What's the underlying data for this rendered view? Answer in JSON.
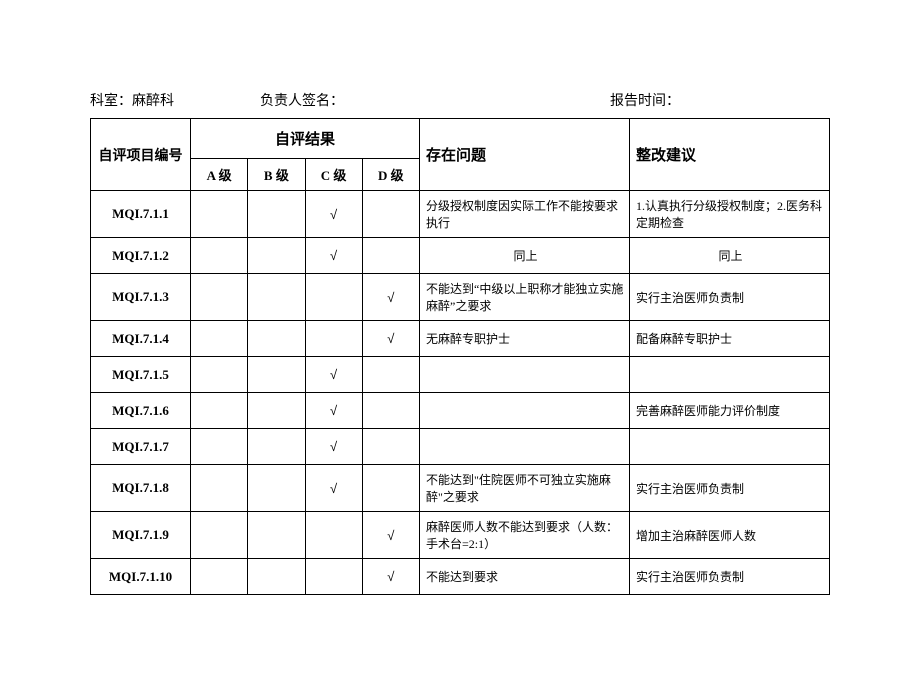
{
  "header": {
    "department_label": "科室：",
    "department_value": "麻醉科",
    "signature_label": "负责人签名：",
    "report_time_label": "报告时间："
  },
  "columns": {
    "id": "自评项目编号",
    "result_group": "自评结果",
    "gradeA": "A 级",
    "gradeB": "B 级",
    "gradeC": "C 级",
    "gradeD": "D 级",
    "issues": "存在问题",
    "suggestions": "整改建议"
  },
  "tick": "√",
  "rows": [
    {
      "id": "MQI.7.1.1",
      "grade": "C",
      "issue": "分级授权制度因实际工作不能按要求执行",
      "suggestion": "1.认真执行分级授权制度；2.医务科定期检查"
    },
    {
      "id": "MQI.7.1.2",
      "grade": "C",
      "issue": "同上",
      "issue_align": "center",
      "suggestion": "同上",
      "suggestion_align": "center"
    },
    {
      "id": "MQI.7.1.3",
      "grade": "D",
      "issue": "不能达到“中级以上职称才能独立实施麻醉”之要求",
      "suggestion": "实行主治医师负责制"
    },
    {
      "id": "MQI.7.1.4",
      "grade": "D",
      "issue": "无麻醉专职护士",
      "suggestion": "配备麻醉专职护士"
    },
    {
      "id": "MQI.7.1.5",
      "grade": "C",
      "issue": "",
      "suggestion": ""
    },
    {
      "id": "MQI.7.1.6",
      "grade": "C",
      "issue": "",
      "suggestion": "完善麻醉医师能力评价制度"
    },
    {
      "id": "MQI.7.1.7",
      "grade": "C",
      "issue": "",
      "suggestion": ""
    },
    {
      "id": "MQI.7.1.8",
      "grade": "C",
      "issue": "不能达到\"住院医师不可独立实施麻醉\"之要求",
      "suggestion": "实行主治医师负责制"
    },
    {
      "id": "MQI.7.1.9",
      "grade": "D",
      "issue": "麻醉医师人数不能达到要求（人数：手术台=2:1）",
      "suggestion": "增加主治麻醉医师人数"
    },
    {
      "id": "MQI.7.1.10",
      "grade": "D",
      "issue": "不能达到要求",
      "suggestion": "实行主治医师负责制"
    }
  ]
}
